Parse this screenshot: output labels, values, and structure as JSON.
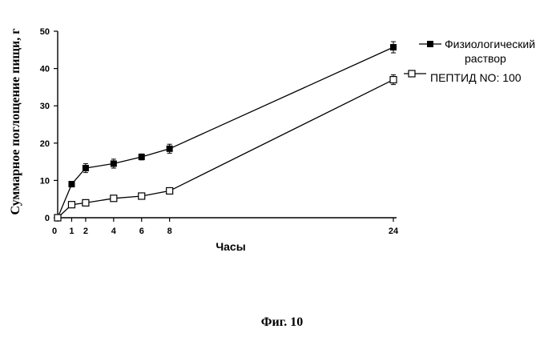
{
  "chart_data": {
    "type": "line",
    "xlabel": "Часы",
    "ylabel": "Суммарное поглощение пищи, г",
    "x_ticks": [
      0,
      1,
      2,
      4,
      6,
      8,
      24
    ],
    "y_ticks": [
      0,
      10,
      20,
      30,
      40,
      50
    ],
    "xlim": [
      0,
      24
    ],
    "ylim": [
      0,
      50
    ],
    "grid": false,
    "legend_position": "right",
    "series": [
      {
        "name": "Физиологический раствор",
        "marker": "filled-square",
        "color": "#000000",
        "x": [
          0,
          1,
          2,
          4,
          6,
          8,
          24
        ],
        "values": [
          0,
          9,
          13.3,
          14.5,
          16.3,
          18.5,
          45.7
        ],
        "error": [
          0,
          0.5,
          1.2,
          1.2,
          0.8,
          1.2,
          1.5
        ]
      },
      {
        "name": "ПЕПТИД NO: 100",
        "marker": "open-square",
        "color": "#000000",
        "x": [
          0,
          1,
          2,
          4,
          6,
          8,
          24
        ],
        "values": [
          0,
          3.5,
          4,
          5.2,
          5.8,
          7.2,
          37
        ],
        "error": [
          0,
          0.4,
          0.5,
          0.8,
          0.5,
          0.6,
          1.3
        ]
      }
    ]
  },
  "legend": {
    "item1_line1": "Физиологический",
    "item1_line2": "раствор",
    "item2": "ПЕПТИД NO: 100"
  },
  "caption": "Фиг. 10"
}
